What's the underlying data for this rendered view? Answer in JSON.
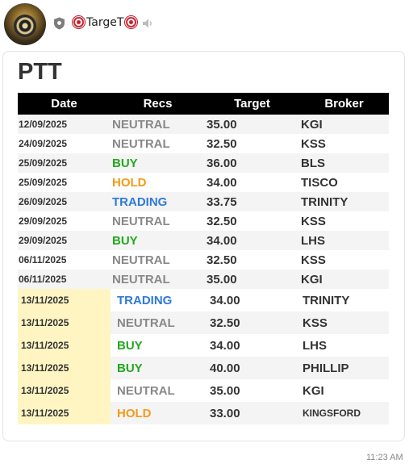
{
  "channel": {
    "name": "TargeT"
  },
  "post": {
    "title": "PTT",
    "time": "11:23 AM",
    "table": {
      "headers": [
        "Date",
        "Recs",
        "Target",
        "Broker"
      ],
      "rows": [
        {
          "date": "12/09/2025",
          "rec": "NEUTRAL",
          "target": "35.00",
          "broker": "KGI",
          "rec_color": "#888888"
        },
        {
          "date": "24/09/2025",
          "rec": "NEUTRAL",
          "target": "32.50",
          "broker": "KSS",
          "rec_color": "#888888"
        },
        {
          "date": "25/09/2025",
          "rec": "BUY",
          "target": "36.00",
          "broker": "BLS",
          "rec_color": "#22a81e"
        },
        {
          "date": "25/09/2025",
          "rec": "HOLD",
          "target": "34.00",
          "broker": "TISCO",
          "rec_color": "#f59a16"
        },
        {
          "date": "26/09/2025",
          "rec": "TRADING",
          "target": "33.75",
          "broker": "TRINITY",
          "rec_color": "#2f7ad6"
        },
        {
          "date": "29/09/2025",
          "rec": "NEUTRAL",
          "target": "32.50",
          "broker": "KSS",
          "rec_color": "#888888"
        },
        {
          "date": "29/09/2025",
          "rec": "BUY",
          "target": "34.00",
          "broker": "LHS",
          "rec_color": "#22a81e"
        },
        {
          "date": "06/11/2025",
          "rec": "NEUTRAL",
          "target": "32.50",
          "broker": "KSS",
          "rec_color": "#888888"
        },
        {
          "date": "06/11/2025",
          "rec": "NEUTRAL",
          "target": "35.00",
          "broker": "KGI",
          "rec_color": "#888888"
        },
        {
          "date": "13/11/2025",
          "rec": "TRADING",
          "target": "34.00",
          "broker": "TRINITY",
          "rec_color": "#2f7ad6"
        },
        {
          "date": "13/11/2025",
          "rec": "NEUTRAL",
          "target": "32.50",
          "broker": "KSS",
          "rec_color": "#888888"
        },
        {
          "date": "13/11/2025",
          "rec": "BUY",
          "target": "34.00",
          "broker": "LHS",
          "rec_color": "#22a81e"
        },
        {
          "date": "13/11/2025",
          "rec": "BUY",
          "target": "40.00",
          "broker": "PHILLIP",
          "rec_color": "#22a81e"
        },
        {
          "date": "13/11/2025",
          "rec": "NEUTRAL",
          "target": "35.00",
          "broker": "KGI",
          "rec_color": "#888888"
        },
        {
          "date": "13/11/2025",
          "rec": "HOLD",
          "target": "33.00",
          "broker": "KINGSFORD",
          "rec_color": "#f59a16"
        }
      ]
    }
  }
}
